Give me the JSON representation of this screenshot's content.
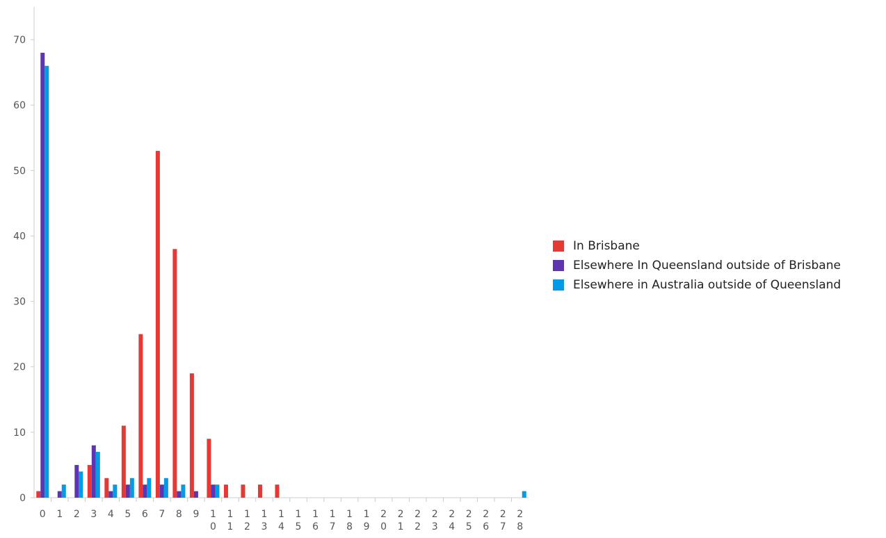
{
  "chart_data": {
    "type": "bar",
    "title": "",
    "xlabel": "",
    "ylabel": "",
    "ylim": [
      0,
      75
    ],
    "yticks": [
      0,
      10,
      20,
      30,
      40,
      50,
      60,
      70
    ],
    "categories": [
      "0",
      "1",
      "2",
      "3",
      "4",
      "5",
      "6",
      "7",
      "8",
      "9",
      "10",
      "11",
      "12",
      "13",
      "14",
      "15",
      "16",
      "17",
      "18",
      "19",
      "20",
      "21",
      "22",
      "23",
      "24",
      "25",
      "26",
      "27",
      "28"
    ],
    "grid": false,
    "legend_position": "right",
    "series": [
      {
        "name": "In Brisbane",
        "color": "#e53935",
        "values": [
          1,
          0,
          0,
          5,
          3,
          11,
          25,
          53,
          38,
          19,
          9,
          2,
          2,
          2,
          2,
          0,
          0,
          0,
          0,
          0,
          0,
          0,
          0,
          0,
          0,
          0,
          0,
          0,
          0
        ]
      },
      {
        "name": "Elsewhere In Queensland outside of Brisbane",
        "color": "#5e35b1",
        "values": [
          68,
          1,
          5,
          8,
          1,
          2,
          2,
          2,
          1,
          1,
          2,
          0,
          0,
          0,
          0,
          0,
          0,
          0,
          0,
          0,
          0,
          0,
          0,
          0,
          0,
          0,
          0,
          0,
          0
        ]
      },
      {
        "name": "Elsewhere in Australia outside of Queensland",
        "color": "#039be5",
        "values": [
          66,
          2,
          4,
          7,
          2,
          3,
          3,
          3,
          2,
          0,
          2,
          0,
          0,
          0,
          0,
          0,
          0,
          0,
          0,
          0,
          0,
          0,
          0,
          0,
          0,
          0,
          0,
          0,
          1
        ]
      }
    ]
  }
}
